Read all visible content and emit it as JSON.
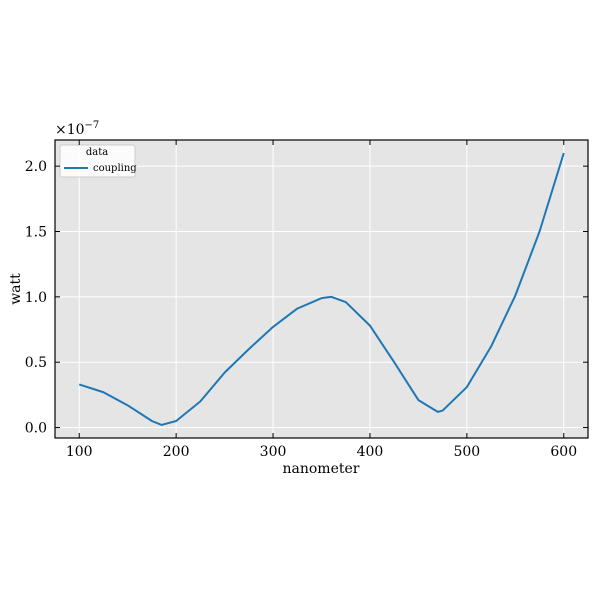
{
  "chart_data": {
    "type": "line",
    "xlabel": "nanometer",
    "ylabel": "watt",
    "offset_text": {
      "base": "×10",
      "exponent": "−7"
    },
    "legend_title": "data",
    "legend_loc": "upper left",
    "grid": true,
    "x": [
      100,
      125,
      150,
      175,
      185,
      200,
      225,
      250,
      275,
      300,
      325,
      350,
      360,
      375,
      400,
      425,
      450,
      470,
      475,
      500,
      525,
      550,
      575,
      600
    ],
    "series": [
      {
        "name": "coupling",
        "color": "#1f77b4",
        "values": [
          0.33,
          0.27,
          0.17,
          0.05,
          0.02,
          0.05,
          0.2,
          0.42,
          0.6,
          0.77,
          0.91,
          0.99,
          1.0,
          0.96,
          0.78,
          0.5,
          0.21,
          0.12,
          0.13,
          0.31,
          0.62,
          1.01,
          1.5,
          2.1
        ]
      }
    ],
    "xlim": [
      75,
      625
    ],
    "ylim": [
      -0.08,
      2.2
    ],
    "xticks": [
      100,
      200,
      300,
      400,
      500,
      600
    ],
    "yticks": [
      {
        "value": 0,
        "label": "0.0"
      },
      0.5,
      {
        "value": 1,
        "label": "1.0"
      },
      1.5,
      {
        "value": 2,
        "label": "2.0"
      }
    ]
  }
}
